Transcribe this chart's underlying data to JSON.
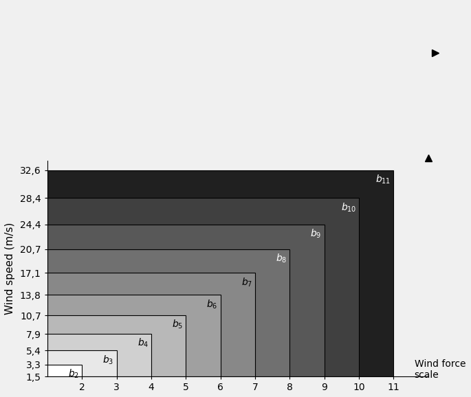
{
  "bars": [
    {
      "label": "b",
      "subscript": "2",
      "x_end": 2,
      "y_top": 3.3,
      "color": "#ffffff",
      "label_color": "black"
    },
    {
      "label": "b",
      "subscript": "3",
      "x_end": 3,
      "y_top": 5.4,
      "color": "#e8e8e8",
      "label_color": "black"
    },
    {
      "label": "b",
      "subscript": "4",
      "x_end": 4,
      "y_top": 7.9,
      "color": "#d0d0d0",
      "label_color": "black"
    },
    {
      "label": "b",
      "subscript": "5",
      "x_end": 5,
      "y_top": 10.7,
      "color": "#b8b8b8",
      "label_color": "black"
    },
    {
      "label": "b",
      "subscript": "6",
      "x_end": 6,
      "y_top": 13.8,
      "color": "#a0a0a0",
      "label_color": "black"
    },
    {
      "label": "b",
      "subscript": "7",
      "x_end": 7,
      "y_top": 17.1,
      "color": "#888888",
      "label_color": "black"
    },
    {
      "label": "b",
      "subscript": "8",
      "x_end": 8,
      "y_top": 20.7,
      "color": "#707070",
      "label_color": "white"
    },
    {
      "label": "b",
      "subscript": "9",
      "x_end": 9,
      "y_top": 24.4,
      "color": "#585858",
      "label_color": "white"
    },
    {
      "label": "b",
      "subscript": "10",
      "x_end": 10,
      "y_top": 28.4,
      "color": "#404040",
      "label_color": "white"
    },
    {
      "label": "b",
      "subscript": "11",
      "x_end": 11,
      "y_top": 32.6,
      "color": "#202020",
      "label_color": "white"
    }
  ],
  "x_start": 1,
  "y_bottom": 1.5,
  "xlim": [
    1,
    12
  ],
  "ylim": [
    1.5,
    34
  ],
  "xticks": [
    2,
    3,
    4,
    5,
    6,
    7,
    8,
    9,
    10,
    11
  ],
  "yticks": [
    1.5,
    3.3,
    5.4,
    7.9,
    10.7,
    13.8,
    17.1,
    20.7,
    24.4,
    28.4,
    32.6
  ],
  "ytick_labels": [
    "1,5",
    "3,3",
    "5,4",
    "7,9",
    "10,7",
    "13,8",
    "17,1",
    "20,7",
    "24,4",
    "28,4",
    "32,6"
  ],
  "xlabel": "Wind force\nscale",
  "ylabel": "Wind speed (m/s)",
  "background_color": "#f0f0f0"
}
